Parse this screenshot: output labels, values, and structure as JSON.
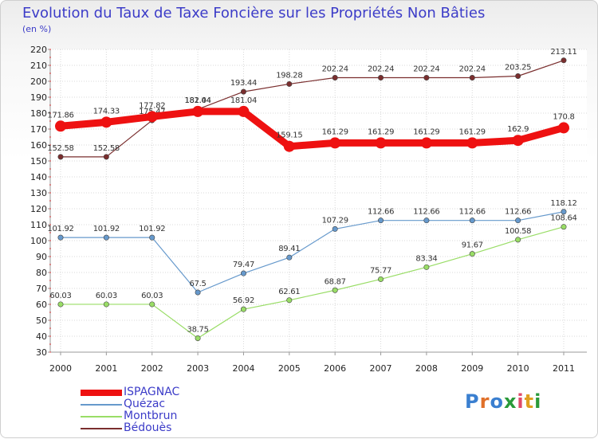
{
  "chart_data": {
    "type": "line",
    "title": "Evolution du Taux de Taxe Foncière sur les Propriétés Non Bâties",
    "ylabel": "(en %)",
    "categories": [
      "2000",
      "2001",
      "2002",
      "2003",
      "2004",
      "2005",
      "2006",
      "2007",
      "2008",
      "2009",
      "2010",
      "2011"
    ],
    "ylim": [
      30,
      220
    ],
    "yticks": [
      30,
      40,
      50,
      60,
      70,
      80,
      90,
      100,
      110,
      120,
      130,
      140,
      150,
      160,
      170,
      180,
      190,
      200,
      210,
      220
    ],
    "series": [
      {
        "name": "Bédouès",
        "color": "#7a2e2e",
        "values": [
          152.58,
          152.58,
          175.47,
          182.44,
          193.44,
          198.28,
          202.24,
          202.24,
          202.24,
          202.24,
          203.25,
          213.11
        ],
        "labels": [
          "152.58",
          "152.58",
          "175.47",
          "182.44",
          "193.44",
          "198.28",
          "202.24",
          "202.24",
          "202.24",
          "202.24",
          "203.25",
          "213.11"
        ]
      },
      {
        "name": "Montbrun",
        "color": "#99dd66",
        "values": [
          60.03,
          60.03,
          60.03,
          38.75,
          56.92,
          62.61,
          68.87,
          75.77,
          83.34,
          91.67,
          100.58,
          108.64
        ],
        "labels": [
          "60.03",
          "60.03",
          "60.03",
          "38.75",
          "56.92",
          "62.61",
          "68.87",
          "75.77",
          "83.34",
          "91.67",
          "100.58",
          "108.64"
        ]
      },
      {
        "name": "Quézac",
        "color": "#6699cc",
        "values": [
          101.92,
          101.92,
          101.92,
          67.5,
          79.47,
          89.41,
          107.29,
          112.66,
          112.66,
          112.66,
          112.66,
          118.12
        ],
        "labels": [
          "101.92",
          "101.92",
          "101.92",
          "67.5",
          "79.47",
          "89.41",
          "107.29",
          "112.66",
          "112.66",
          "112.66",
          "112.66",
          "118.12"
        ]
      },
      {
        "name": "ISPAGNAC",
        "color": "#ee1111",
        "values": [
          171.86,
          174.33,
          177.82,
          181.04,
          181.04,
          159.15,
          161.29,
          161.29,
          161.29,
          161.29,
          162.9,
          170.8
        ],
        "labels": [
          "171.86",
          "174.33",
          "177.82",
          "181.04",
          "181.04",
          "159.15",
          "161.29",
          "161.29",
          "161.29",
          "161.29",
          "162.9",
          "170.8"
        ]
      }
    ],
    "legend": [
      "ISPAGNAC",
      "Quézac",
      "Montbrun",
      "Bédouès"
    ]
  },
  "brand": {
    "logo": "Proxiti"
  }
}
